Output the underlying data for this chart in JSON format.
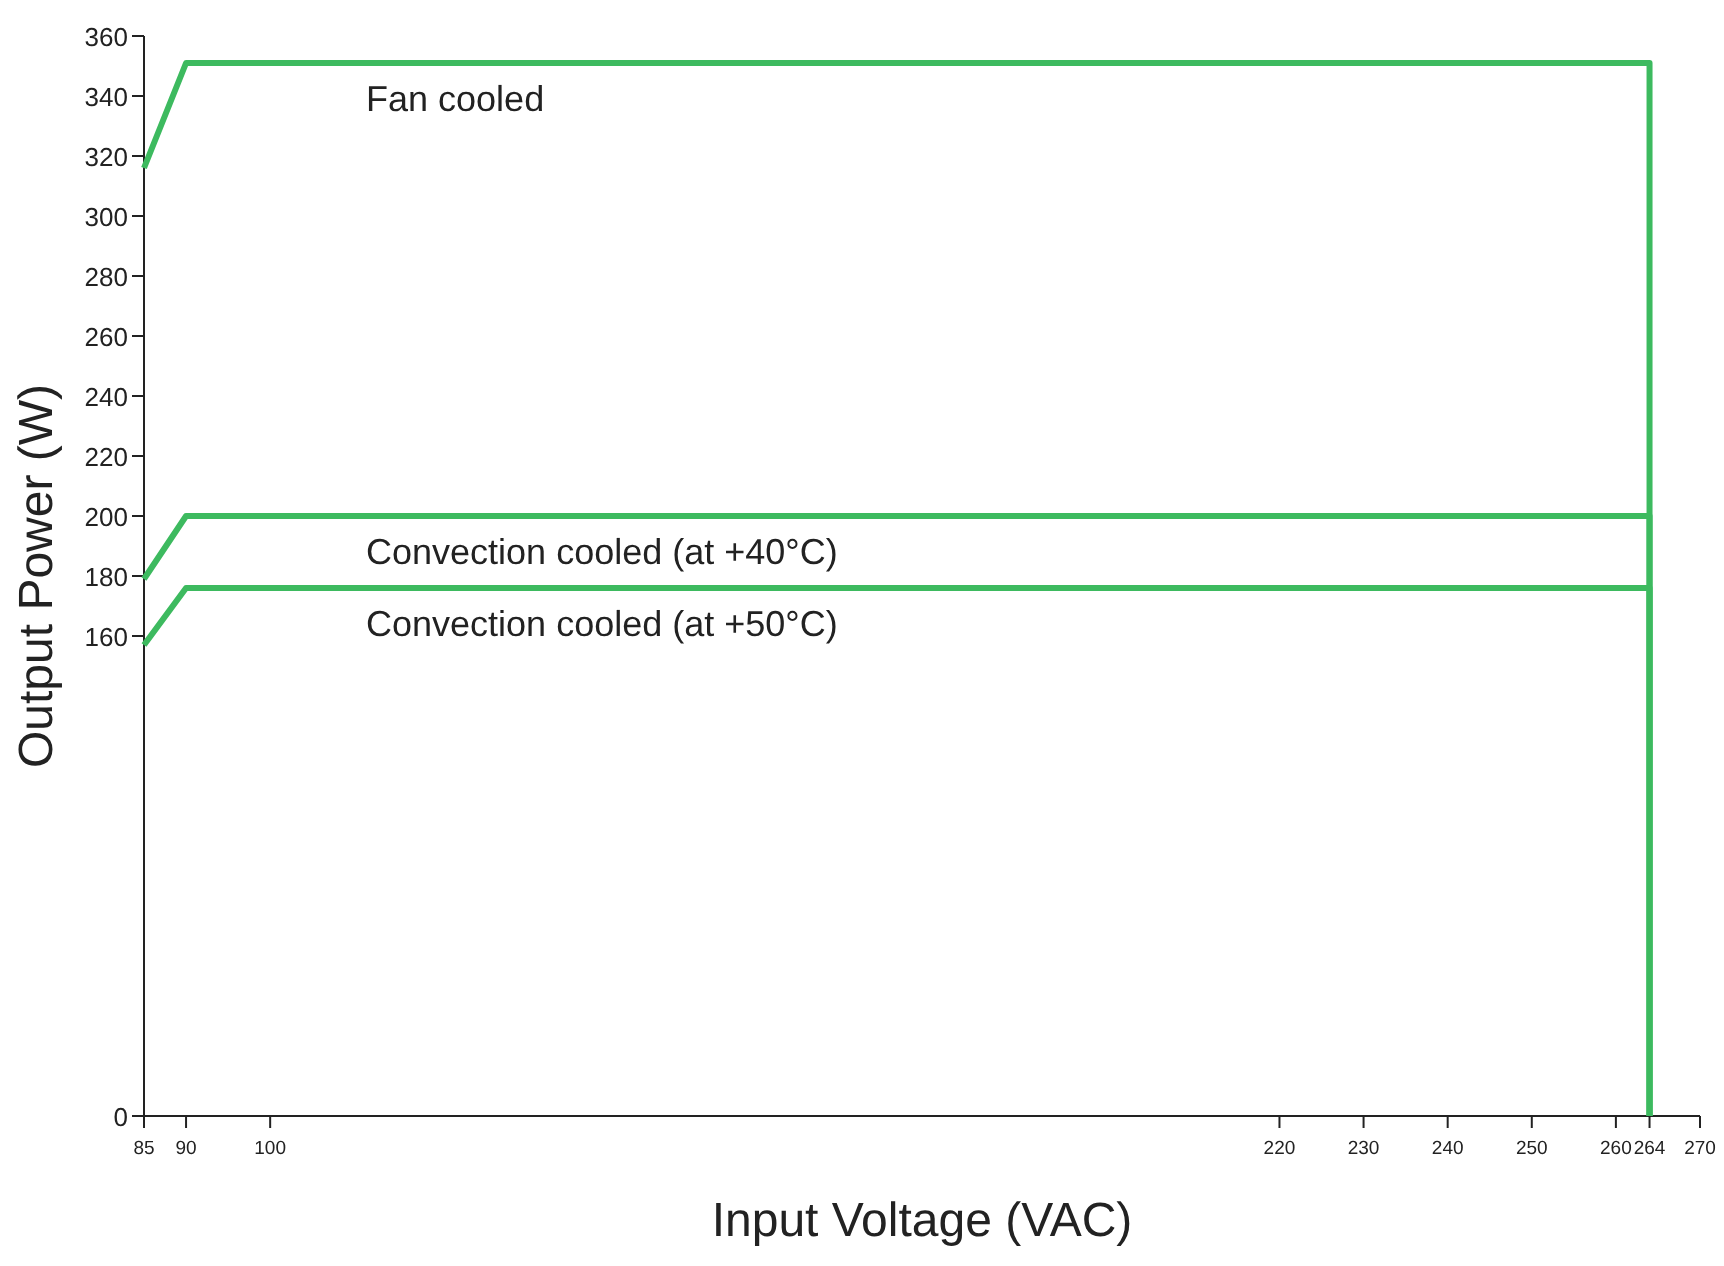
{
  "chart_data": {
    "type": "line",
    "xlabel": "Input Voltage (VAC)",
    "ylabel": "Output Power (W)",
    "xlim": [
      85,
      270
    ],
    "xticks": [
      85,
      90,
      100,
      220,
      230,
      240,
      250,
      260,
      264,
      270
    ],
    "ylim": [
      0,
      360
    ],
    "yticks": [
      0,
      160,
      180,
      200,
      220,
      240,
      260,
      280,
      300,
      320,
      340,
      360
    ],
    "grid": false,
    "marker": "none",
    "line_style": "solid",
    "series": [
      {
        "name": "Fan cooled",
        "color": "#3dba5f",
        "x": [
          85,
          90,
          264,
          264
        ],
        "values": [
          316,
          351,
          351,
          0
        ]
      },
      {
        "name": "Convection cooled (at +40°C)",
        "color": "#3dba5f",
        "x": [
          85,
          90,
          264,
          264
        ],
        "values": [
          179,
          200,
          200,
          0
        ]
      },
      {
        "name": "Convection cooled (at +50°C)",
        "color": "#3dba5f",
        "x": [
          85,
          90,
          264,
          264
        ],
        "values": [
          157,
          176,
          176,
          0
        ]
      }
    ]
  }
}
